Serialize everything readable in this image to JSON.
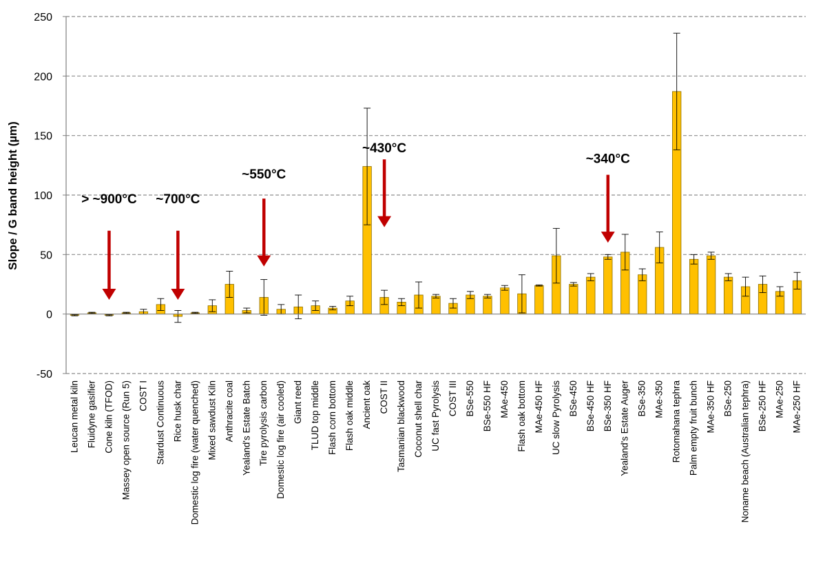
{
  "chart_data": {
    "type": "bar",
    "title": "",
    "xlabel": "",
    "ylabel": "Slope / G band height (µm)",
    "ylim": [
      -50,
      250
    ],
    "yticks": [
      -50,
      0,
      50,
      100,
      150,
      200,
      250
    ],
    "grid": "horizontal dashed",
    "bar_color": "#FFC000",
    "bar_edge_color": "#8a6d00",
    "arrow_color": "#C00000",
    "categories": [
      "Leucan metal kiln",
      "Fluidyne gasifier",
      "Cone kiln (TFOD)",
      "Massey open source (Run 5)",
      "COST I",
      "Stardust Continuous",
      "Rice husk char",
      "Domestic log fire (water quenched)",
      "Mixed sawdust Kiln",
      "Anthracite coal",
      "Yealand's Estate Batch",
      "Tire pyrolysis carbon",
      "Domestic log fire (air cooled)",
      "Giant reed",
      "TLUD top middle",
      "Flash corn bottom",
      "Flash oak middle",
      "Ancient oak",
      "COST II",
      "Tasmanian blackwood",
      "Coconut shell char",
      "UC fast Pyrolysis",
      "COST III",
      "BSe-550",
      "BSe-550 HF",
      "MAe-450",
      "Flash oak bottom",
      "MAe-450 HF",
      "UC slow Pyrolysis",
      "BSe-450",
      "BSe-450 HF",
      "BSe-350 HF",
      "Yealand's Estate Auger",
      "BSe-350",
      "MAe-350",
      "Rotomahana tephra",
      "Palm empty fruit bunch",
      "MAe-350 HF",
      "BSe-250",
      "Noname beach (Australian tephra)",
      "BSe-250 HF",
      "MAe-250",
      "MAe-250 HF"
    ],
    "values": [
      -1,
      1,
      -1,
      1,
      2,
      8,
      -2,
      1,
      7,
      25,
      3,
      14,
      4,
      6,
      7,
      5,
      11,
      124,
      14,
      10,
      16,
      15,
      9,
      16,
      15,
      22,
      17,
      24,
      49,
      25,
      31,
      48,
      52,
      33,
      56,
      187,
      46,
      49,
      31,
      23,
      25,
      19,
      28
    ],
    "errors": [
      0.5,
      0.5,
      0.5,
      0.5,
      2,
      5,
      5,
      0.5,
      5,
      11,
      2,
      15,
      4,
      10,
      4,
      1.5,
      4,
      49,
      6,
      3,
      11,
      1.5,
      4,
      3,
      1.5,
      2,
      16,
      0.5,
      23,
      1.5,
      3,
      2,
      15,
      5,
      13,
      49,
      4,
      3,
      3,
      8,
      7,
      4,
      7
    ],
    "annotations": [
      {
        "text": "> ~900°C",
        "category": "Cone kiln (TFOD)",
        "arrow_top": 70,
        "arrow_tip": 12,
        "text_y": 93
      },
      {
        "text": "~700°C",
        "category": "Rice husk char",
        "arrow_top": 70,
        "arrow_tip": 12,
        "text_y": 93
      },
      {
        "text": "~550°C",
        "category": "Tire pyrolysis carbon",
        "arrow_top": 97,
        "arrow_tip": 40,
        "text_y": 114
      },
      {
        "text": "~430°C",
        "category": "COST II",
        "arrow_top": 130,
        "arrow_tip": 73,
        "text_y": 136
      },
      {
        "text": "~340°C",
        "category": "BSe-350 HF",
        "arrow_top": 117,
        "arrow_tip": 60,
        "text_y": 127
      }
    ]
  }
}
